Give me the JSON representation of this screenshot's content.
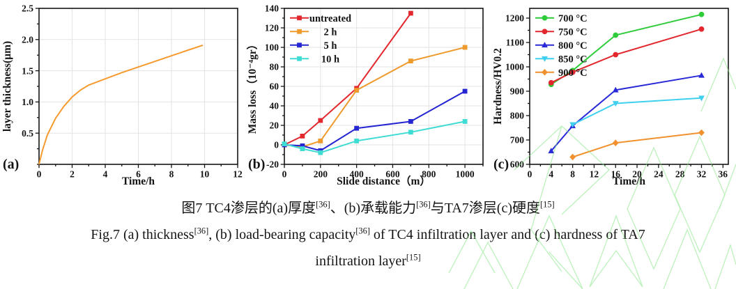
{
  "figure": {
    "caption_cn_parts": [
      {
        "t": "图7 TC4渗层的(a)厚度"
      },
      {
        "t": "[36]",
        "sup": true
      },
      {
        "t": "、(b)承载能力"
      },
      {
        "t": "[36]",
        "sup": true
      },
      {
        "t": "与TA7渗层(c)硬度"
      },
      {
        "t": "[15]",
        "sup": true
      }
    ],
    "caption_en1_parts": [
      {
        "t": "Fig.7 (a) thickness"
      },
      {
        "t": "[36]",
        "sup": true
      },
      {
        "t": ", (b) load-bearing capacity"
      },
      {
        "t": "[36]",
        "sup": true
      },
      {
        "t": " of TC4 infiltration layer and (c) hardness of TA7"
      }
    ],
    "caption_en2_parts": [
      {
        "t": "infiltration layer"
      },
      {
        "t": "[15]",
        "sup": true
      }
    ]
  },
  "watermark": {
    "color": "#86e686"
  },
  "chart_data": [
    {
      "type": "line",
      "panel_label": "(a)",
      "title": "",
      "xlabel": "Time/h",
      "ylabel": "layer thickness(μm)",
      "xlim": [
        0,
        12
      ],
      "ylim": [
        0,
        2.5
      ],
      "xticks": [
        0,
        2,
        4,
        6,
        8,
        10,
        12
      ],
      "xtick_labels": [
        "0",
        "2",
        "4",
        "6",
        "8",
        "10",
        "12"
      ],
      "yticks": [
        0.5,
        1.0,
        1.5,
        2.0,
        2.5
      ],
      "ytick_labels": [
        "0.5",
        "1.0",
        "1.5",
        "2.0",
        "2.5"
      ],
      "xminor_step": 1,
      "yminor_step": 0.25,
      "grid": true,
      "legend": {
        "show": false,
        "position": "none",
        "align": "left"
      },
      "series": [
        {
          "name": "layer thickness",
          "color": "#f59a2e",
          "marker": "none",
          "points": [
            [
              0,
              0
            ],
            [
              0.2,
              0.22
            ],
            [
              0.5,
              0.47
            ],
            [
              1,
              0.74
            ],
            [
              1.5,
              0.93
            ],
            [
              2,
              1.08
            ],
            [
              2.5,
              1.19
            ],
            [
              3,
              1.27
            ],
            [
              4,
              1.37
            ],
            [
              5,
              1.47
            ],
            [
              6,
              1.56
            ],
            [
              7,
              1.65
            ],
            [
              8,
              1.74
            ],
            [
              9,
              1.83
            ],
            [
              9.9,
              1.91
            ]
          ]
        }
      ]
    },
    {
      "type": "line",
      "panel_label": "(b)",
      "title": "",
      "xlabel": "Slide distance（m）",
      "ylabel": "Mass loss（10⁻⁴gr）",
      "xlim": [
        0,
        1100
      ],
      "ylim": [
        -20,
        140
      ],
      "xticks": [
        0,
        200,
        400,
        600,
        800,
        1000
      ],
      "xtick_labels": [
        "0",
        "200",
        "400",
        "600",
        "800",
        "1000"
      ],
      "yticks": [
        -20,
        0,
        20,
        40,
        60,
        80,
        100,
        120,
        140
      ],
      "ytick_labels": [
        "-20",
        "0",
        "20",
        "40",
        "60",
        "80",
        "100",
        "120",
        "140"
      ],
      "xminor_step": 100,
      "yminor_step": 10,
      "grid": true,
      "legend": {
        "show": true,
        "position": "top-left",
        "align": "center"
      },
      "series": [
        {
          "name": "untreated",
          "color": "#e2282e",
          "marker": "square",
          "points": [
            [
              0,
              0
            ],
            [
              100,
              9
            ],
            [
              200,
              25
            ],
            [
              400,
              58
            ],
            [
              700,
              135
            ]
          ]
        },
        {
          "name": "2 h",
          "color": "#ee9a2c",
          "marker": "square",
          "points": [
            [
              0,
              0
            ],
            [
              100,
              -2
            ],
            [
              200,
              4
            ],
            [
              400,
              56
            ],
            [
              700,
              86
            ],
            [
              1000,
              100
            ]
          ]
        },
        {
          "name": "5 h",
          "color": "#2525d2",
          "marker": "square",
          "points": [
            [
              0,
              0
            ],
            [
              100,
              -1
            ],
            [
              200,
              -6
            ],
            [
              400,
              17
            ],
            [
              700,
              24
            ],
            [
              1000,
              55
            ]
          ]
        },
        {
          "name": "10 h",
          "color": "#3fdcd4",
          "marker": "square",
          "points": [
            [
              0,
              1
            ],
            [
              100,
              -4
            ],
            [
              200,
              -8
            ],
            [
              400,
              4
            ],
            [
              700,
              13
            ],
            [
              1000,
              24
            ]
          ]
        }
      ]
    },
    {
      "type": "line",
      "panel_label": "(c)",
      "title": "",
      "xlabel": "Time/h",
      "ylabel": "Hardness/HV0.2",
      "xlim": [
        0,
        37
      ],
      "ylim": [
        600,
        1240
      ],
      "xticks": [
        0,
        4,
        8,
        12,
        16,
        20,
        24,
        28,
        32,
        36
      ],
      "xtick_labels": [
        "0",
        "4",
        "8",
        "12",
        "16",
        "20",
        "24",
        "28",
        "32",
        "36"
      ],
      "yticks": [
        600,
        700,
        800,
        900,
        1000,
        1100,
        1200
      ],
      "ytick_labels": [
        "600",
        "700",
        "800",
        "900",
        "1000",
        "1100",
        "1200"
      ],
      "xminor_step": 2,
      "yminor_step": 50,
      "grid": false,
      "legend": {
        "show": true,
        "position": "top-left",
        "align": "left"
      },
      "series": [
        {
          "name": "700 °C",
          "color": "#2ecc3a",
          "marker": "circle",
          "points": [
            [
              4,
              928
            ],
            [
              8,
              985
            ],
            [
              16,
              1130
            ],
            [
              32,
              1215
            ]
          ]
        },
        {
          "name": "750 °C",
          "color": "#e2282e",
          "marker": "circle",
          "points": [
            [
              4,
              935
            ],
            [
              8,
              978
            ],
            [
              16,
              1050
            ],
            [
              32,
              1155
            ]
          ]
        },
        {
          "name": "800 °C",
          "color": "#2a2ad8",
          "marker": "triangle-up",
          "points": [
            [
              4,
              655
            ],
            [
              8,
              758
            ],
            [
              16,
              905
            ],
            [
              32,
              965
            ]
          ]
        },
        {
          "name": "850 °C",
          "color": "#3fd0f0",
          "marker": "triangle-down",
          "points": [
            [
              8,
              763
            ],
            [
              16,
              850
            ],
            [
              32,
              872
            ]
          ]
        },
        {
          "name": "900 °C",
          "color": "#f0912e",
          "marker": "diamond",
          "points": [
            [
              8,
              630
            ],
            [
              16,
              688
            ],
            [
              32,
              730
            ]
          ]
        }
      ]
    }
  ]
}
